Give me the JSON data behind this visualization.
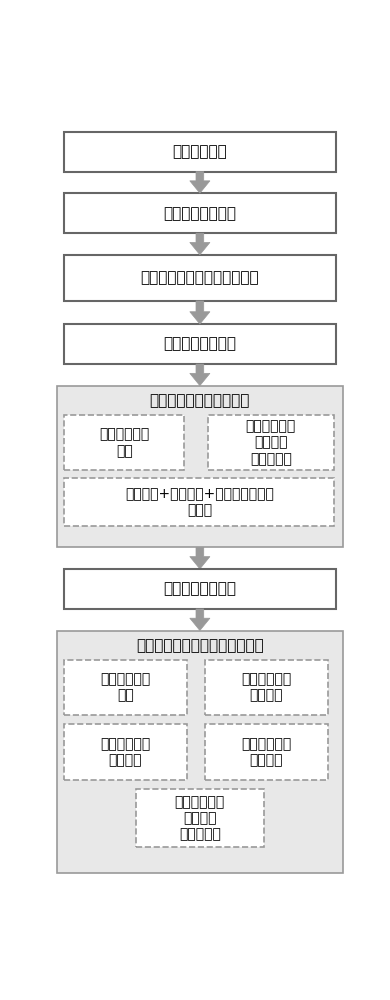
{
  "fig_width": 3.9,
  "fig_height": 10.0,
  "bg_color": "#ffffff",
  "box_bg": "#ffffff",
  "box_border": "#555555",
  "group_bg": "#e8e8e8",
  "group_border": "#999999",
  "dashed_border": "#999999",
  "arrow_color": "#999999",
  "top_boxes": [
    "路口状态分级",
    "车头时距阈值设置",
    "绿灯后排满所需时间阈值设置",
    "路口状态一次识别"
  ],
  "group1_title": "路口三状态计算模型构建",
  "group1_sub_left": "畅通状态计算\n模型",
  "group1_sub_right": "严重拥堵状态\n计算模型\n（含溢出）",
  "group1_bottom": "基本畅通+轻度拥堵+中度拥堵状态计\n算模型",
  "middle_box": "路口状态二次识别",
  "group2_title": "路口拥堵指数分段计算模型构建",
  "group2_tl": "畅通状态计算\n模型",
  "group2_tr": "基本畅通状态\n计算模型",
  "group2_bl": "轻度拥堵状态\n计算模型",
  "group2_br": "中度拥堵状态\n计算模型",
  "group2_bottom": "严重拥堵状态\n计算模型\n（含溢出）"
}
